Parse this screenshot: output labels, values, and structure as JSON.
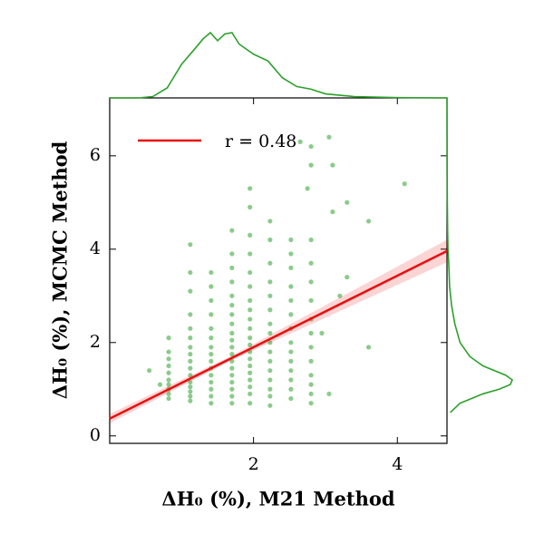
{
  "chart_data": {
    "type": "scatter",
    "xlabel": "ΔH₀ (%), M21 Method",
    "ylabel": "ΔH₀ (%), MCMC Method",
    "xlim": [
      0,
      4.69
    ],
    "ylim": [
      -0.16,
      7.24
    ],
    "xticks": [
      2,
      4
    ],
    "yticks": [
      0,
      2,
      4,
      6
    ],
    "color": "#2ca02c",
    "x": [
      0.82,
      0.82,
      0.82,
      0.82,
      0.82,
      0.82,
      0.82,
      0.82,
      0.82,
      0.82,
      1.12,
      1.12,
      1.12,
      1.12,
      1.12,
      1.12,
      1.12,
      1.12,
      1.12,
      1.12,
      1.12,
      1.12,
      1.12,
      1.12,
      1.12,
      1.12,
      1.41,
      1.41,
      1.41,
      1.41,
      1.41,
      1.41,
      1.41,
      1.41,
      1.41,
      1.41,
      1.41,
      1.41,
      1.41,
      1.41,
      1.41,
      1.7,
      1.7,
      1.7,
      1.7,
      1.7,
      1.7,
      1.7,
      1.7,
      1.7,
      1.7,
      1.7,
      1.7,
      1.7,
      1.7,
      1.7,
      1.7,
      1.7,
      1.7,
      1.7,
      1.95,
      1.95,
      1.95,
      1.95,
      1.95,
      1.95,
      1.95,
      1.95,
      1.95,
      1.95,
      1.95,
      1.95,
      1.95,
      1.95,
      1.95,
      1.95,
      1.95,
      1.95,
      1.95,
      1.95,
      2.23,
      2.23,
      2.23,
      2.23,
      2.23,
      2.23,
      2.23,
      2.23,
      2.23,
      2.23,
      2.23,
      2.23,
      2.23,
      2.23,
      2.23,
      2.23,
      2.52,
      2.52,
      2.52,
      2.52,
      2.52,
      2.52,
      2.52,
      2.52,
      2.52,
      2.52,
      2.52,
      2.52,
      2.52,
      2.52,
      2.8,
      2.8,
      2.8,
      2.8,
      2.8,
      2.8,
      2.8,
      2.8,
      2.8,
      2.8,
      2.8,
      2.8,
      0.55,
      0.7,
      3.05,
      3.1,
      3.3,
      3.1,
      3.6,
      4.1,
      3.2,
      3.3,
      3.6,
      2.95,
      3.05,
      2.8,
      2.75,
      2.8,
      2.65
    ],
    "y": [
      0.9,
      1.0,
      1.1,
      1.2,
      1.35,
      1.5,
      1.65,
      1.8,
      2.1,
      0.8,
      0.75,
      0.85,
      0.95,
      1.05,
      1.15,
      1.3,
      1.45,
      1.6,
      1.75,
      1.9,
      2.1,
      2.3,
      2.6,
      3.1,
      3.5,
      4.1,
      0.7,
      0.85,
      1.0,
      1.15,
      1.3,
      1.45,
      1.6,
      1.75,
      1.9,
      2.1,
      2.3,
      2.6,
      2.9,
      3.2,
      3.5,
      0.7,
      0.85,
      1.0,
      1.15,
      1.3,
      1.45,
      1.6,
      1.75,
      1.9,
      2.05,
      2.2,
      2.4,
      2.6,
      2.8,
      3.0,
      3.3,
      3.6,
      3.9,
      4.4,
      0.7,
      0.9,
      1.05,
      1.2,
      1.35,
      1.5,
      1.65,
      1.8,
      1.95,
      2.1,
      2.3,
      2.5,
      2.7,
      2.9,
      3.2,
      3.5,
      3.9,
      4.3,
      4.9,
      5.3,
      0.65,
      0.85,
      1.0,
      1.2,
      1.4,
      1.6,
      1.8,
      2.0,
      2.2,
      2.4,
      2.7,
      3.0,
      3.3,
      3.7,
      4.2,
      4.6,
      0.8,
      1.0,
      1.2,
      1.4,
      1.6,
      1.8,
      2.0,
      2.3,
      2.6,
      2.9,
      3.2,
      3.6,
      3.9,
      4.2,
      0.7,
      0.9,
      1.1,
      1.3,
      1.6,
      1.9,
      2.2,
      2.5,
      2.9,
      3.3,
      3.7,
      4.2,
      1.4,
      1.1,
      6.4,
      5.8,
      5.0,
      4.8,
      4.6,
      5.4,
      3.0,
      3.4,
      1.9,
      2.2,
      0.9,
      6.2,
      5.3,
      5.8,
      6.3
    ],
    "fit": {
      "label": "r = 0.48",
      "color": "#e8100f",
      "x": [
        0,
        1.7,
        4.69
      ],
      "y": [
        0.37,
        1.67,
        3.96
      ],
      "lower": [
        0.27,
        1.62,
        3.72
      ],
      "upper": [
        0.47,
        1.72,
        4.2
      ]
    },
    "legend": "upper left",
    "marginal_x": {
      "x": [
        0,
        0.4,
        0.6,
        0.8,
        1.0,
        1.2,
        1.3,
        1.4,
        1.5,
        1.6,
        1.7,
        1.8,
        2.0,
        2.2,
        2.4,
        2.6,
        2.8,
        3.0,
        3.4,
        4.0,
        4.69
      ],
      "density": [
        0,
        0,
        0.02,
        0.15,
        0.5,
        0.75,
        0.88,
        0.97,
        0.85,
        0.95,
        0.97,
        0.8,
        0.65,
        0.55,
        0.3,
        0.17,
        0.13,
        0.06,
        0.02,
        0.005,
        0
      ]
    },
    "marginal_y": {
      "y": [
        0.5,
        0.7,
        0.9,
        1.0,
        1.1,
        1.2,
        1.3,
        1.5,
        1.7,
        2.0,
        2.4,
        2.8,
        3.2,
        3.6,
        4.0,
        4.4,
        5,
        6,
        7.24
      ],
      "density": [
        0.05,
        0.2,
        0.55,
        0.8,
        0.97,
        1.0,
        0.9,
        0.55,
        0.35,
        0.2,
        0.12,
        0.07,
        0.04,
        0.03,
        0.015,
        0.01,
        0.005,
        0.002,
        0
      ]
    }
  }
}
